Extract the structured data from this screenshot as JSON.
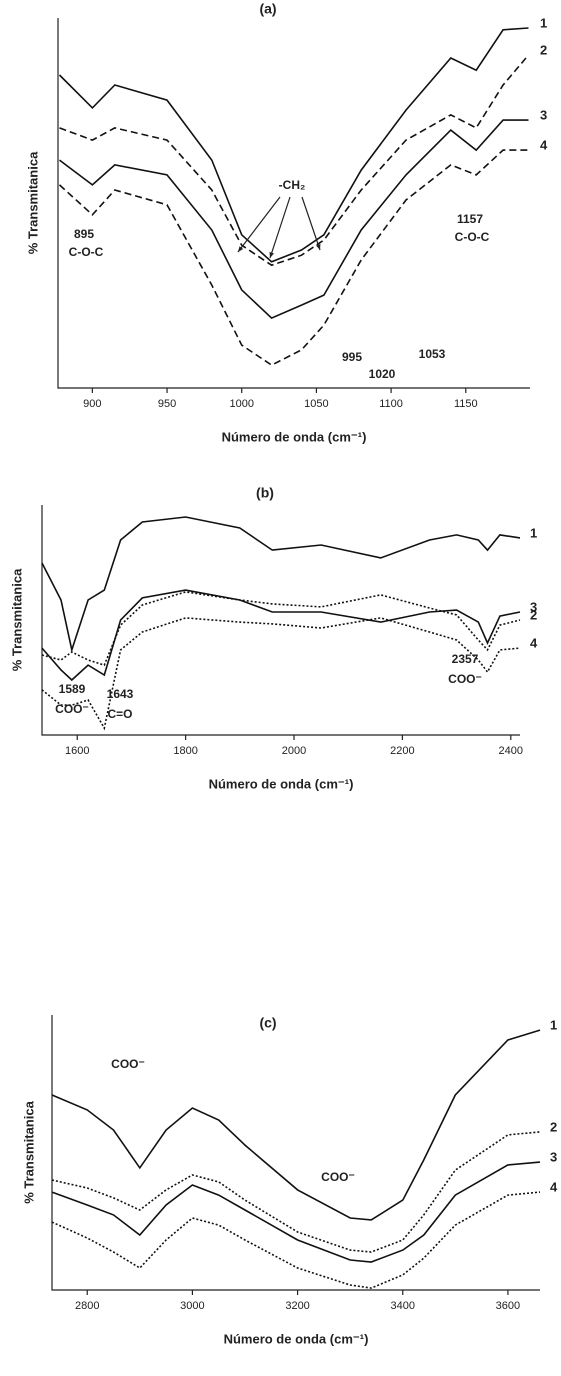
{
  "chart_data": [
    {
      "type": "line",
      "title": "(a)",
      "xlabel": "Número de onda (cm⁻¹)",
      "ylabel": "% Transmitanica",
      "x": [
        878,
        900,
        915,
        950,
        980,
        1000,
        1020,
        1040,
        1055,
        1080,
        1110,
        1140,
        1157,
        1175,
        1192
      ],
      "xlim": [
        877,
        1193
      ],
      "xticks": [
        900,
        950,
        1000,
        1050,
        1100,
        1150
      ],
      "ylim": [
        0,
        100
      ],
      "series": [
        {
          "name": "1",
          "color": "#111111",
          "dash": "solid",
          "values": [
            84.6,
            75.7,
            81.9,
            77.8,
            61.6,
            41.4,
            34.1,
            37.3,
            41.4,
            58.9,
            75.1,
            89.2,
            85.9,
            96.8,
            97.3
          ]
        },
        {
          "name": "2",
          "color": "#111111",
          "dash": "dashed",
          "values": [
            70.3,
            67.0,
            70.3,
            67.0,
            53.5,
            38.6,
            33.2,
            35.9,
            40.0,
            53.5,
            67.0,
            73.8,
            70.3,
            81.9,
            90.0
          ]
        },
        {
          "name": "3",
          "color": "#111111",
          "dash": "solid",
          "values": [
            61.6,
            54.9,
            60.3,
            57.6,
            42.7,
            26.5,
            18.9,
            22.4,
            25.1,
            42.7,
            57.6,
            69.7,
            64.3,
            72.4,
            72.4
          ]
        },
        {
          "name": "4",
          "color": "#111111",
          "dash": "dashed",
          "values": [
            54.9,
            46.8,
            53.5,
            49.5,
            27.8,
            11.6,
            6.2,
            10.3,
            17.0,
            34.6,
            50.8,
            60.3,
            57.6,
            64.3,
            64.3
          ]
        }
      ],
      "annotations": [
        "-CH₂",
        "895",
        "C-O-C",
        "1157",
        "C-O-C",
        "995",
        "1020",
        "1053"
      ]
    },
    {
      "type": "line",
      "title": "(b)",
      "xlabel": "Número de onda (cm⁻¹)",
      "ylabel": "% Transmitanica",
      "x": [
        1535,
        1570,
        1590,
        1620,
        1650,
        1680,
        1720,
        1800,
        1900,
        1960,
        2050,
        2160,
        2250,
        2300,
        2340,
        2357,
        2380,
        2417
      ],
      "xlim": [
        1535,
        2417
      ],
      "xticks": [
        1600,
        1800,
        2000,
        2200,
        2400
      ],
      "ylim": [
        0,
        100
      ],
      "series": [
        {
          "name": "1",
          "color": "#111111",
          "dash": "solid",
          "values": [
            74.8,
            58.7,
            37.0,
            58.7,
            63.0,
            84.8,
            92.6,
            94.8,
            90.0,
            80.4,
            82.6,
            77.0,
            84.8,
            87.0,
            84.8,
            80.4,
            87.0,
            85.7
          ]
        },
        {
          "name": "2",
          "color": "#111111",
          "dash": "dotted",
          "values": [
            34.8,
            32.6,
            36.1,
            32.6,
            30.4,
            47.8,
            56.5,
            62.2,
            58.7,
            57.0,
            55.7,
            60.9,
            55.2,
            52.2,
            41.3,
            37.0,
            47.8,
            50.0
          ]
        },
        {
          "name": "3",
          "color": "#111111",
          "dash": "solid",
          "values": [
            37.8,
            28.3,
            23.9,
            30.4,
            26.1,
            50.0,
            59.6,
            63.0,
            58.7,
            53.5,
            53.5,
            49.1,
            53.5,
            54.3,
            49.1,
            40.0,
            51.7,
            53.5
          ]
        },
        {
          "name": "4",
          "color": "#111111",
          "dash": "dotted",
          "values": [
            19.6,
            13.0,
            13.0,
            15.2,
            3.0,
            37.0,
            44.8,
            50.9,
            49.1,
            48.3,
            46.5,
            50.9,
            44.8,
            41.3,
            32.6,
            27.4,
            37.0,
            37.8
          ]
        }
      ],
      "annotations": [
        "1589",
        "COO⁻",
        "1643",
        "C=O",
        "2357",
        "COO⁻"
      ]
    },
    {
      "type": "line",
      "title": "(c)",
      "xlabel": "Número de onda (cm⁻¹)",
      "ylabel": "% Transmitanica",
      "x": [
        2733,
        2800,
        2850,
        2900,
        2950,
        3000,
        3050,
        3100,
        3200,
        3300,
        3340,
        3400,
        3440,
        3500,
        3600,
        3661
      ],
      "xlim": [
        2733,
        3661
      ],
      "xticks": [
        2800,
        3000,
        3200,
        3400,
        3600
      ],
      "ylim": [
        0,
        100
      ],
      "series": [
        {
          "name": "1",
          "color": "#111111",
          "dash": "solid",
          "values": [
            70.9,
            65.5,
            58.2,
            44.4,
            58.2,
            66.2,
            61.8,
            52.7,
            36.4,
            26.2,
            25.5,
            32.7,
            47.3,
            70.9,
            90.9,
            94.5
          ]
        },
        {
          "name": "2",
          "color": "#111111",
          "dash": "dotted",
          "values": [
            40.0,
            37.1,
            33.5,
            29.1,
            36.4,
            41.8,
            39.3,
            32.7,
            21.1,
            14.5,
            13.8,
            18.2,
            27.3,
            43.6,
            56.4,
            57.5
          ]
        },
        {
          "name": "3",
          "color": "#111111",
          "dash": "solid",
          "values": [
            35.6,
            30.9,
            27.3,
            20.0,
            30.9,
            38.2,
            34.5,
            29.1,
            18.2,
            10.9,
            10.2,
            14.5,
            20.0,
            34.5,
            45.5,
            46.5
          ]
        },
        {
          "name": "4",
          "color": "#111111",
          "dash": "dotted",
          "values": [
            24.7,
            18.9,
            13.8,
            8.0,
            18.2,
            26.2,
            23.6,
            18.2,
            8.0,
            1.8,
            0.7,
            5.5,
            11.6,
            23.6,
            34.5,
            35.6
          ]
        }
      ],
      "annotations": [
        "COO⁻",
        "COO⁻"
      ]
    }
  ]
}
